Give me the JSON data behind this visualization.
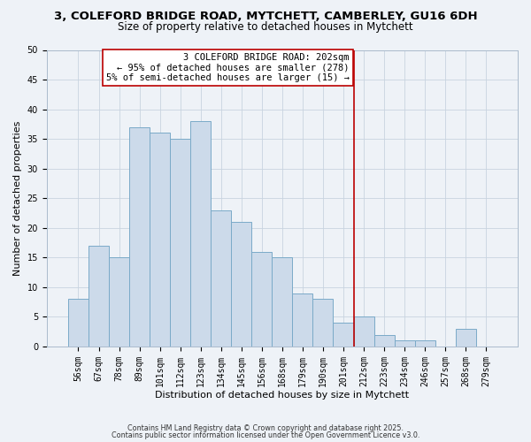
{
  "title_line1": "3, COLEFORD BRIDGE ROAD, MYTCHETT, CAMBERLEY, GU16 6DH",
  "title_line2": "Size of property relative to detached houses in Mytchett",
  "xlabel": "Distribution of detached houses by size in Mytchett",
  "ylabel": "Number of detached properties",
  "footnote1": "Contains HM Land Registry data © Crown copyright and database right 2025.",
  "footnote2": "Contains public sector information licensed under the Open Government Licence v3.0.",
  "bar_labels": [
    "56sqm",
    "67sqm",
    "78sqm",
    "89sqm",
    "101sqm",
    "112sqm",
    "123sqm",
    "134sqm",
    "145sqm",
    "156sqm",
    "168sqm",
    "179sqm",
    "190sqm",
    "201sqm",
    "212sqm",
    "223sqm",
    "234sqm",
    "246sqm",
    "257sqm",
    "268sqm",
    "279sqm"
  ],
  "bar_values": [
    8,
    17,
    15,
    37,
    36,
    35,
    38,
    23,
    21,
    16,
    15,
    9,
    8,
    4,
    5,
    2,
    1,
    1,
    0,
    3,
    0
  ],
  "bar_color": "#ccdaea",
  "bar_edgecolor": "#7aaac8",
  "vline_index": 13.5,
  "vline_color": "#bb0000",
  "annotation_text": "3 COLEFORD BRIDGE ROAD: 202sqm\n← 95% of detached houses are smaller (278)\n5% of semi-detached houses are larger (15) →",
  "annotation_box_edgecolor": "#bb0000",
  "ylim": [
    0,
    50
  ],
  "yticks": [
    0,
    5,
    10,
    15,
    20,
    25,
    30,
    35,
    40,
    45,
    50
  ],
  "bg_color": "#eef2f7",
  "plot_bg_color": "#eef2f7",
  "grid_color": "#c8d4e0",
  "title1_fontsize": 9.5,
  "title2_fontsize": 8.5,
  "xlabel_fontsize": 8.0,
  "ylabel_fontsize": 8.0,
  "tick_fontsize": 7.0,
  "annot_fontsize": 7.5,
  "footnote_fontsize": 5.8
}
